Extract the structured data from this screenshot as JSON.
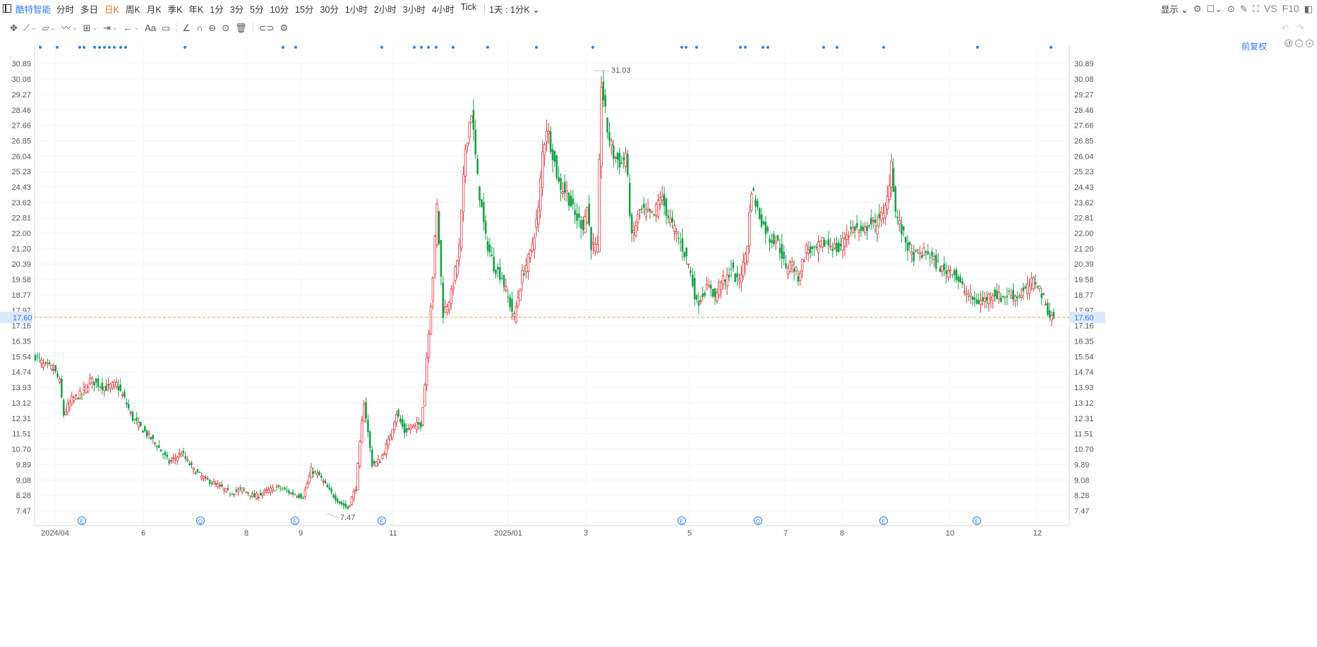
{
  "header": {
    "stock_name": "酷特智能",
    "periods": [
      "分时",
      "多日",
      "日K",
      "周K",
      "月K",
      "季K",
      "年K",
      "1分",
      "3分",
      "5分",
      "10分",
      "15分",
      "30分",
      "1小时",
      "2小时",
      "3小时",
      "4小时",
      "Tick"
    ],
    "active_period": "日K",
    "interval_select": "1天 : 1分K",
    "display_label": "显示",
    "vs_label": "VS",
    "f10_label": "F10"
  },
  "adjust_label": "前复权",
  "colors": {
    "up": "#e0393e",
    "down": "#17a34a",
    "accent": "#2e7cf6",
    "price_line": "#f5a04a"
  },
  "chart_data": {
    "type": "candlestick",
    "title": "",
    "ylim": [
      7.0,
      31.4
    ],
    "y_ticks": [
      "30.89",
      "30.08",
      "29.27",
      "28.46",
      "27.66",
      "26.85",
      "26.04",
      "25.23",
      "24.43",
      "23.62",
      "22.81",
      "22.00",
      "21.20",
      "20.39",
      "19.58",
      "18.77",
      "17.97",
      "17.16",
      "16.35",
      "15.54",
      "14.74",
      "13.93",
      "13.12",
      "12.31",
      "11.51",
      "10.70",
      "9.89",
      "9.08",
      "8.28",
      "7.47"
    ],
    "x_labels": [
      "2024/04",
      "6",
      "8",
      "9",
      "11",
      "2025/01",
      "3",
      "5",
      "7",
      "8",
      "10",
      "12"
    ],
    "current_price": "17.60",
    "max_label": "31.03",
    "min_label": "7.47",
    "event_markers": [
      "E",
      "Q",
      "E",
      "E",
      "E",
      "Q",
      "E",
      "E"
    ],
    "anchors": [
      [
        0,
        15.6
      ],
      [
        4,
        15.1
      ],
      [
        9,
        14.9
      ],
      [
        12,
        14.2
      ],
      [
        14,
        12.5
      ],
      [
        18,
        13.3
      ],
      [
        23,
        13.6
      ],
      [
        27,
        14.3
      ],
      [
        31,
        14.1
      ],
      [
        35,
        13.9
      ],
      [
        40,
        14.1
      ],
      [
        44,
        13.3
      ],
      [
        48,
        12.3
      ],
      [
        54,
        11.6
      ],
      [
        60,
        10.9
      ],
      [
        66,
        10.0
      ],
      [
        72,
        10.5
      ],
      [
        78,
        9.6
      ],
      [
        84,
        9.1
      ],
      [
        90,
        8.8
      ],
      [
        96,
        8.4
      ],
      [
        102,
        8.6
      ],
      [
        108,
        8.2
      ],
      [
        114,
        8.5
      ],
      [
        120,
        8.7
      ],
      [
        126,
        8.4
      ],
      [
        132,
        8.2
      ],
      [
        136,
        9.6
      ],
      [
        140,
        9.3
      ],
      [
        145,
        8.5
      ],
      [
        150,
        7.9
      ],
      [
        154,
        7.6
      ],
      [
        158,
        8.7
      ],
      [
        162,
        13.2
      ],
      [
        166,
        9.9
      ],
      [
        170,
        10.1
      ],
      [
        174,
        11.1
      ],
      [
        178,
        12.6
      ],
      [
        182,
        11.6
      ],
      [
        186,
        11.9
      ],
      [
        190,
        12.0
      ],
      [
        192,
        14.1
      ],
      [
        196,
        19.8
      ],
      [
        198,
        23.4
      ],
      [
        201,
        17.8
      ],
      [
        205,
        18.8
      ],
      [
        209,
        21.2
      ],
      [
        212,
        26.5
      ],
      [
        215,
        28.4
      ],
      [
        218,
        24.8
      ],
      [
        222,
        21.7
      ],
      [
        226,
        20.3
      ],
      [
        230,
        19.7
      ],
      [
        233,
        18.6
      ],
      [
        236,
        17.6
      ],
      [
        240,
        19.8
      ],
      [
        244,
        20.9
      ],
      [
        248,
        23.2
      ],
      [
        250,
        26.2
      ],
      [
        252,
        27.6
      ],
      [
        255,
        26.2
      ],
      [
        258,
        24.6
      ],
      [
        262,
        24.1
      ],
      [
        266,
        22.9
      ],
      [
        270,
        22.4
      ],
      [
        272,
        23.4
      ],
      [
        274,
        21.4
      ],
      [
        277,
        21.1
      ],
      [
        279,
        29.9
      ],
      [
        282,
        27.4
      ],
      [
        285,
        26.1
      ],
      [
        289,
        25.6
      ],
      [
        291,
        26.2
      ],
      [
        294,
        21.7
      ],
      [
        298,
        23.2
      ],
      [
        302,
        23.0
      ],
      [
        305,
        22.9
      ],
      [
        308,
        24.0
      ],
      [
        313,
        22.6
      ],
      [
        318,
        21.5
      ],
      [
        322,
        20.4
      ],
      [
        326,
        18.3
      ],
      [
        330,
        19.0
      ],
      [
        333,
        19.2
      ],
      [
        335,
        18.6
      ],
      [
        338,
        19.6
      ],
      [
        340,
        19.4
      ],
      [
        343,
        20.2
      ],
      [
        346,
        19.4
      ],
      [
        349,
        20.3
      ],
      [
        351,
        21.5
      ],
      [
        353,
        24.4
      ],
      [
        356,
        23.2
      ],
      [
        359,
        22.4
      ],
      [
        362,
        21.7
      ],
      [
        365,
        21.7
      ],
      [
        368,
        20.9
      ],
      [
        370,
        20.0
      ],
      [
        372,
        20.6
      ],
      [
        376,
        19.7
      ],
      [
        380,
        21.2
      ],
      [
        384,
        21.0
      ],
      [
        388,
        21.5
      ],
      [
        392,
        21.4
      ],
      [
        396,
        21.1
      ],
      [
        400,
        22.0
      ],
      [
        404,
        22.3
      ],
      [
        408,
        21.9
      ],
      [
        411,
        22.6
      ],
      [
        414,
        22.3
      ],
      [
        416,
        23.0
      ],
      [
        418,
        22.8
      ],
      [
        420,
        23.8
      ],
      [
        422,
        25.8
      ],
      [
        424,
        23.1
      ],
      [
        427,
        22.1
      ],
      [
        432,
        20.8
      ],
      [
        436,
        20.9
      ],
      [
        440,
        21.0
      ],
      [
        444,
        20.4
      ],
      [
        448,
        20.0
      ],
      [
        452,
        20.1
      ],
      [
        456,
        19.3
      ],
      [
        460,
        18.7
      ],
      [
        464,
        18.4
      ],
      [
        468,
        18.5
      ],
      [
        472,
        18.9
      ],
      [
        476,
        18.6
      ],
      [
        480,
        18.8
      ],
      [
        484,
        18.7
      ],
      [
        488,
        19.0
      ],
      [
        492,
        19.5
      ],
      [
        494,
        19.4
      ],
      [
        496,
        18.8
      ],
      [
        498,
        18.3
      ],
      [
        500,
        17.7
      ],
      [
        502,
        17.6
      ]
    ]
  }
}
